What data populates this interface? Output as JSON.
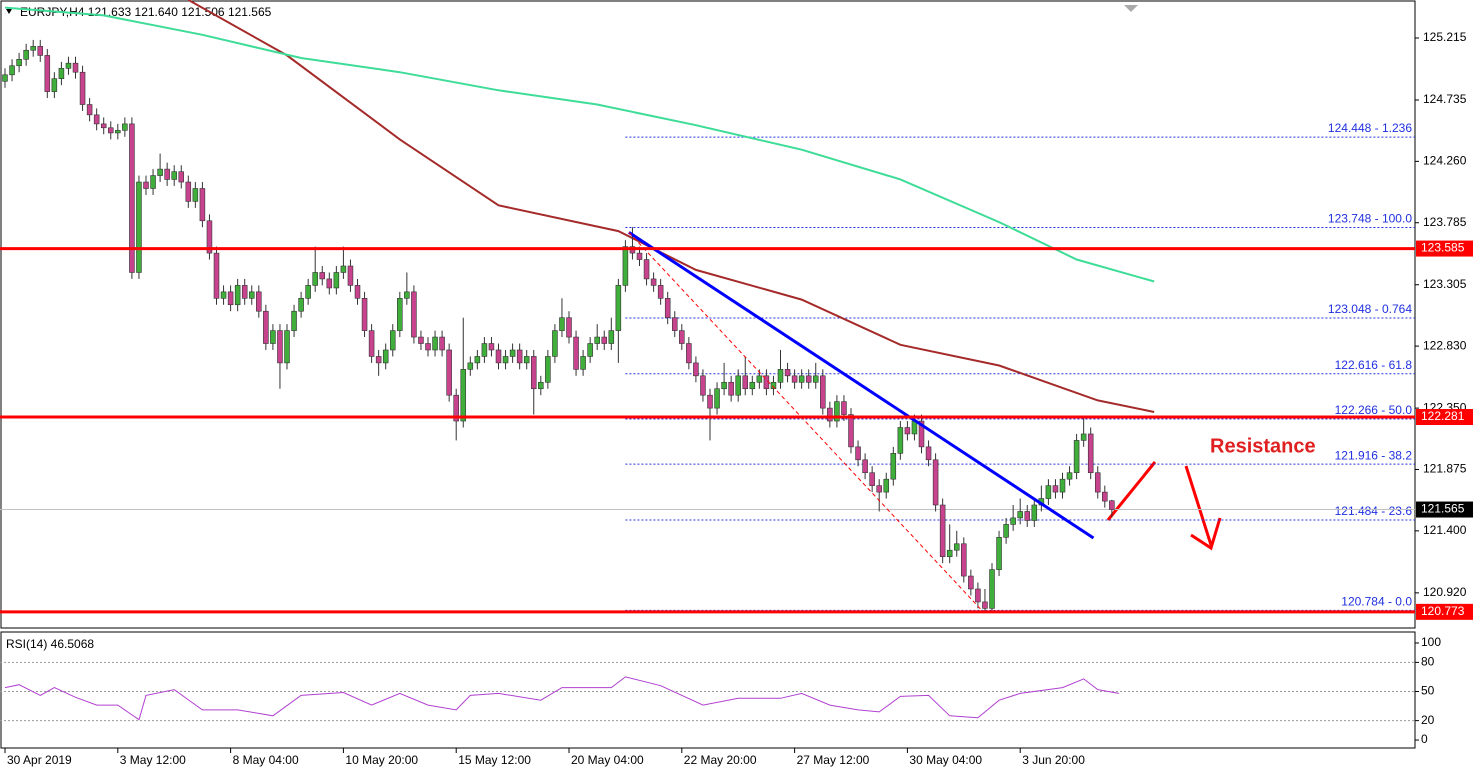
{
  "chart_data": {
    "type": "candlestick",
    "title": "EURJPY,H4  121.633 121.640 121.506 121.565",
    "annotation": "Resistance",
    "xlim": [
      -0.71,
      200
    ],
    "ylim": [
      120.648,
      125.509
    ],
    "xticks": [
      {
        "value": 0,
        "label": "30 Apr 2019"
      },
      {
        "value": 16,
        "label": "3 May 12:00"
      },
      {
        "value": 32,
        "label": "8 May 04:00"
      },
      {
        "value": 48,
        "label": "10 May 20:00"
      },
      {
        "value": 64,
        "label": "15 May 12:00"
      },
      {
        "value": 80,
        "label": "20 May 04:00"
      },
      {
        "value": 96,
        "label": "22 May 20:00"
      },
      {
        "value": 112,
        "label": "27 May 12:00"
      },
      {
        "value": 128,
        "label": "30 May 04:00"
      },
      {
        "value": 144,
        "label": "3 Jun 20:00"
      }
    ],
    "yticks": [
      {
        "value": 125.215,
        "label": "125.215"
      },
      {
        "value": 124.735,
        "label": "124.735"
      },
      {
        "value": 124.26,
        "label": "124.260"
      },
      {
        "value": 123.785,
        "label": "123.785"
      },
      {
        "value": 123.305,
        "label": "123.305"
      },
      {
        "value": 122.83,
        "label": "122.830"
      },
      {
        "value": 122.35,
        "label": "122.350"
      },
      {
        "value": 121.875,
        "label": "121.875"
      },
      {
        "value": 121.4,
        "label": "121.400"
      },
      {
        "value": 120.92,
        "label": "120.920"
      }
    ],
    "up_color": "#3fae3a",
    "down_color": "#c8438d",
    "candles": [
      [
        124.88,
        124.98,
        124.83,
        124.93
      ],
      [
        124.93,
        125.05,
        124.88,
        125.0
      ],
      [
        125.0,
        125.1,
        124.95,
        125.05
      ],
      [
        125.05,
        125.17,
        125.0,
        125.12
      ],
      [
        125.12,
        125.2,
        125.07,
        125.15
      ],
      [
        125.15,
        125.2,
        125.03,
        125.08
      ],
      [
        125.08,
        125.13,
        124.75,
        124.8
      ],
      [
        124.8,
        124.95,
        124.75,
        124.9
      ],
      [
        124.9,
        125.03,
        124.85,
        124.98
      ],
      [
        124.98,
        125.07,
        124.93,
        125.02
      ],
      [
        125.02,
        125.07,
        124.9,
        124.95
      ],
      [
        124.95,
        125.0,
        124.65,
        124.7
      ],
      [
        124.7,
        124.75,
        124.57,
        124.62
      ],
      [
        124.62,
        124.67,
        124.5,
        124.55
      ],
      [
        124.55,
        124.6,
        124.47,
        124.52
      ],
      [
        124.52,
        124.57,
        124.43,
        124.48
      ],
      [
        124.48,
        124.55,
        124.43,
        124.5
      ],
      [
        124.5,
        124.6,
        124.45,
        124.55
      ],
      [
        124.55,
        124.6,
        123.35,
        123.4
      ],
      [
        123.4,
        124.15,
        123.35,
        124.1
      ],
      [
        124.1,
        124.15,
        124.0,
        124.05
      ],
      [
        124.05,
        124.2,
        124.0,
        124.15
      ],
      [
        124.15,
        124.32,
        124.1,
        124.2
      ],
      [
        124.2,
        124.25,
        124.07,
        124.12
      ],
      [
        124.12,
        124.23,
        124.07,
        124.18
      ],
      [
        124.18,
        124.23,
        124.05,
        124.1
      ],
      [
        124.1,
        124.15,
        123.9,
        123.95
      ],
      [
        123.95,
        124.1,
        123.9,
        124.05
      ],
      [
        124.05,
        124.1,
        123.75,
        123.8
      ],
      [
        123.8,
        123.85,
        123.5,
        123.55
      ],
      [
        123.55,
        123.6,
        123.15,
        123.2
      ],
      [
        123.2,
        123.3,
        123.15,
        123.25
      ],
      [
        123.25,
        123.3,
        123.1,
        123.15
      ],
      [
        123.15,
        123.35,
        123.1,
        123.3
      ],
      [
        123.3,
        123.35,
        123.15,
        123.2
      ],
      [
        123.2,
        123.3,
        123.15,
        123.25
      ],
      [
        123.25,
        123.3,
        123.05,
        123.1
      ],
      [
        123.1,
        123.15,
        122.8,
        122.85
      ],
      [
        122.85,
        123.0,
        122.8,
        122.95
      ],
      [
        122.95,
        123.0,
        122.5,
        122.7
      ],
      [
        122.7,
        123.0,
        122.65,
        122.95
      ],
      [
        122.95,
        123.15,
        122.9,
        123.1
      ],
      [
        123.1,
        123.25,
        123.05,
        123.2
      ],
      [
        123.2,
        123.35,
        123.15,
        123.3
      ],
      [
        123.3,
        123.6,
        123.25,
        123.4
      ],
      [
        123.4,
        123.45,
        123.3,
        123.35
      ],
      [
        123.35,
        123.4,
        123.23,
        123.28
      ],
      [
        123.28,
        123.45,
        123.23,
        123.4
      ],
      [
        123.4,
        123.6,
        123.35,
        123.45
      ],
      [
        123.45,
        123.5,
        123.25,
        123.3
      ],
      [
        123.3,
        123.35,
        123.15,
        123.2
      ],
      [
        123.2,
        123.25,
        122.9,
        122.95
      ],
      [
        122.95,
        123.0,
        122.7,
        122.75
      ],
      [
        122.75,
        122.8,
        122.6,
        122.7
      ],
      [
        122.7,
        122.85,
        122.65,
        122.8
      ],
      [
        122.8,
        123.0,
        122.75,
        122.95
      ],
      [
        122.95,
        123.25,
        122.9,
        123.2
      ],
      [
        123.2,
        123.4,
        123.15,
        123.25
      ],
      [
        123.25,
        123.3,
        122.85,
        122.9
      ],
      [
        122.9,
        122.95,
        122.8,
        122.85
      ],
      [
        122.85,
        122.9,
        122.75,
        122.8
      ],
      [
        122.8,
        122.95,
        122.75,
        122.9
      ],
      [
        122.9,
        122.95,
        122.75,
        122.8
      ],
      [
        122.8,
        122.85,
        122.4,
        122.45
      ],
      [
        122.45,
        122.5,
        122.1,
        122.25
      ],
      [
        122.25,
        123.05,
        122.2,
        122.65
      ],
      [
        122.65,
        122.75,
        122.6,
        122.7
      ],
      [
        122.7,
        122.8,
        122.65,
        122.75
      ],
      [
        122.75,
        122.9,
        122.7,
        122.85
      ],
      [
        122.85,
        122.9,
        122.75,
        122.8
      ],
      [
        122.8,
        122.85,
        122.65,
        122.7
      ],
      [
        122.7,
        122.8,
        122.65,
        122.75
      ],
      [
        122.75,
        122.85,
        122.7,
        122.8
      ],
      [
        122.8,
        122.85,
        122.65,
        122.7
      ],
      [
        122.7,
        122.8,
        122.65,
        122.75
      ],
      [
        122.75,
        122.8,
        122.3,
        122.5
      ],
      [
        122.5,
        122.6,
        122.45,
        122.55
      ],
      [
        122.55,
        122.8,
        122.5,
        122.75
      ],
      [
        122.75,
        123.0,
        122.7,
        122.95
      ],
      [
        122.95,
        123.2,
        122.9,
        123.05
      ],
      [
        123.05,
        123.1,
        122.85,
        122.9
      ],
      [
        122.9,
        122.95,
        122.6,
        122.65
      ],
      [
        122.65,
        122.8,
        122.6,
        122.75
      ],
      [
        122.75,
        122.9,
        122.7,
        122.85
      ],
      [
        122.85,
        123.0,
        122.8,
        122.9
      ],
      [
        122.9,
        122.95,
        122.8,
        122.85
      ],
      [
        122.85,
        123.05,
        122.8,
        122.95
      ],
      [
        122.95,
        123.35,
        122.7,
        123.3
      ],
      [
        123.3,
        123.65,
        123.25,
        123.6
      ],
      [
        123.6,
        123.75,
        123.5,
        123.55
      ],
      [
        123.55,
        123.6,
        123.45,
        123.5
      ],
      [
        123.5,
        123.55,
        123.3,
        123.35
      ],
      [
        123.35,
        123.4,
        123.25,
        123.3
      ],
      [
        123.3,
        123.35,
        123.15,
        123.2
      ],
      [
        123.2,
        123.25,
        123.0,
        123.05
      ],
      [
        123.05,
        123.1,
        122.9,
        122.95
      ],
      [
        122.95,
        123.0,
        122.8,
        122.85
      ],
      [
        122.85,
        122.9,
        122.65,
        122.7
      ],
      [
        122.7,
        122.75,
        122.55,
        122.6
      ],
      [
        122.6,
        122.65,
        122.4,
        122.45
      ],
      [
        122.45,
        122.5,
        122.1,
        122.35
      ],
      [
        122.35,
        122.55,
        122.3,
        122.5
      ],
      [
        122.5,
        122.7,
        122.45,
        122.55
      ],
      [
        122.55,
        122.6,
        122.4,
        122.45
      ],
      [
        122.45,
        122.65,
        122.4,
        122.6
      ],
      [
        122.6,
        122.75,
        122.45,
        122.5
      ],
      [
        122.5,
        122.6,
        122.45,
        122.55
      ],
      [
        122.55,
        122.65,
        122.5,
        122.6
      ],
      [
        122.6,
        122.65,
        122.45,
        122.5
      ],
      [
        122.5,
        122.6,
        122.45,
        122.55
      ],
      [
        122.55,
        122.8,
        122.5,
        122.65
      ],
      [
        122.65,
        122.7,
        122.55,
        122.6
      ],
      [
        122.6,
        122.65,
        122.5,
        122.55
      ],
      [
        122.55,
        122.65,
        122.5,
        122.6
      ],
      [
        122.6,
        122.65,
        122.5,
        122.55
      ],
      [
        122.55,
        122.7,
        122.5,
        122.6
      ],
      [
        122.6,
        122.65,
        122.3,
        122.35
      ],
      [
        122.35,
        122.4,
        122.2,
        122.25
      ],
      [
        122.25,
        122.45,
        122.2,
        122.4
      ],
      [
        122.4,
        122.45,
        122.25,
        122.3
      ],
      [
        122.3,
        122.35,
        122.0,
        122.05
      ],
      [
        122.05,
        122.1,
        121.9,
        121.95
      ],
      [
        121.95,
        122.0,
        121.8,
        121.85
      ],
      [
        121.85,
        121.9,
        121.7,
        121.75
      ],
      [
        121.75,
        121.8,
        121.55,
        121.7
      ],
      [
        121.7,
        121.85,
        121.65,
        121.8
      ],
      [
        121.8,
        122.05,
        121.75,
        122.0
      ],
      [
        122.0,
        122.25,
        121.95,
        122.2
      ],
      [
        122.2,
        122.25,
        122.1,
        122.15
      ],
      [
        122.15,
        122.3,
        122.1,
        122.25
      ],
      [
        122.25,
        122.3,
        122.0,
        122.05
      ],
      [
        122.05,
        122.1,
        121.9,
        121.95
      ],
      [
        121.95,
        122.0,
        121.55,
        121.6
      ],
      [
        121.6,
        121.65,
        121.15,
        121.2
      ],
      [
        121.2,
        121.45,
        121.15,
        121.25
      ],
      [
        121.25,
        121.4,
        121.2,
        121.3
      ],
      [
        121.3,
        121.35,
        121.0,
        121.05
      ],
      [
        121.05,
        121.1,
        120.9,
        120.95
      ],
      [
        120.95,
        121.0,
        120.8,
        120.85
      ],
      [
        120.85,
        120.95,
        120.77,
        120.8
      ],
      [
        120.8,
        121.15,
        120.78,
        121.1
      ],
      [
        121.1,
        121.4,
        121.05,
        121.35
      ],
      [
        121.35,
        121.5,
        121.3,
        121.45
      ],
      [
        121.45,
        121.6,
        121.4,
        121.5
      ],
      [
        121.5,
        121.65,
        121.45,
        121.55
      ],
      [
        121.55,
        121.6,
        121.43,
        121.48
      ],
      [
        121.48,
        121.65,
        121.43,
        121.6
      ],
      [
        121.6,
        121.75,
        121.55,
        121.65
      ],
      [
        121.65,
        121.8,
        121.6,
        121.75
      ],
      [
        121.75,
        121.8,
        121.65,
        121.7
      ],
      [
        121.7,
        121.85,
        121.65,
        121.8
      ],
      [
        121.8,
        121.9,
        121.75,
        121.85
      ],
      [
        121.85,
        122.15,
        121.8,
        122.1
      ],
      [
        122.1,
        122.27,
        122.05,
        122.15
      ],
      [
        122.15,
        122.2,
        121.8,
        121.85
      ],
      [
        121.85,
        121.9,
        121.65,
        121.7
      ],
      [
        121.7,
        121.75,
        121.58,
        121.63
      ],
      [
        121.633,
        121.64,
        121.506,
        121.565
      ]
    ],
    "series": [
      {
        "color": "#a52a2a",
        "x": [
          26,
          40,
          56,
          70,
          87,
          98,
          113,
          127,
          141,
          155,
          163
        ],
        "values": [
          125.51,
          125.08,
          124.43,
          123.92,
          123.72,
          123.42,
          123.19,
          122.84,
          122.68,
          122.41,
          122.32
        ]
      },
      {
        "color": "#3ddc97",
        "x": [
          0,
          14,
          28,
          42,
          56,
          70,
          84,
          98,
          113,
          127,
          141,
          152,
          163
        ],
        "values": [
          125.45,
          125.39,
          125.24,
          125.06,
          124.95,
          124.81,
          124.7,
          124.54,
          124.35,
          124.12,
          123.79,
          123.5,
          123.33
        ]
      }
    ],
    "levels": [
      {
        "value": 123.585,
        "color": "#ff0000"
      },
      {
        "value": 122.281,
        "color": "#ff0000"
      },
      {
        "value": 120.773,
        "color": "#ff0000"
      }
    ],
    "bid": 121.565,
    "fib_start": 88,
    "fib_levels": [
      {
        "value": 124.448,
        "label": "124.448 - 1.236"
      },
      {
        "value": 123.748,
        "label": "123.748 - 100.0"
      },
      {
        "value": 123.048,
        "label": "123.048 - 0.764"
      },
      {
        "value": 122.616,
        "label": "122.616 - 61.8"
      },
      {
        "value": 122.266,
        "label": "122.266 - 50.0"
      },
      {
        "value": 121.916,
        "label": "121.916 - 38.2"
      },
      {
        "value": 121.484,
        "label": "121.484 - 23.6"
      },
      {
        "value": 120.784,
        "label": "120.784 - 0.0"
      }
    ],
    "trendlines": [
      {
        "color": "#0000ff",
        "x": [
          88.5,
          154.4
        ],
        "values": [
          123.71,
          121.345
        ]
      },
      {
        "color": "#ff0000",
        "dashed": true,
        "x": [
          88.5,
          138.8
        ],
        "values": [
          123.71,
          120.77
        ]
      }
    ],
    "rsi": {
      "title": "RSI(14) 46.5068",
      "color": "#b040d0",
      "ylim": [
        -8.2,
        111.3
      ],
      "yticks": [
        100,
        80,
        50,
        20,
        0
      ],
      "levels": [
        80,
        50,
        20
      ],
      "x": [
        0,
        2,
        5,
        7,
        10,
        13,
        16,
        19,
        20,
        24,
        28,
        33,
        38,
        42,
        48,
        52,
        56,
        60,
        64,
        66,
        70,
        76,
        79,
        86,
        88,
        93,
        99,
        104,
        110,
        113,
        117,
        121,
        124,
        127,
        131,
        134,
        138,
        141,
        144,
        150,
        153,
        155,
        158
      ],
      "values": [
        54,
        57,
        46,
        54,
        44,
        36,
        36,
        21,
        46,
        52,
        31,
        31,
        25,
        46,
        49,
        36,
        48,
        36,
        31,
        46,
        48,
        41,
        54,
        54,
        65,
        56,
        36,
        43,
        43,
        48,
        36,
        31,
        29,
        45,
        46,
        25,
        23,
        41,
        48,
        54,
        63,
        52,
        48
      ]
    }
  }
}
